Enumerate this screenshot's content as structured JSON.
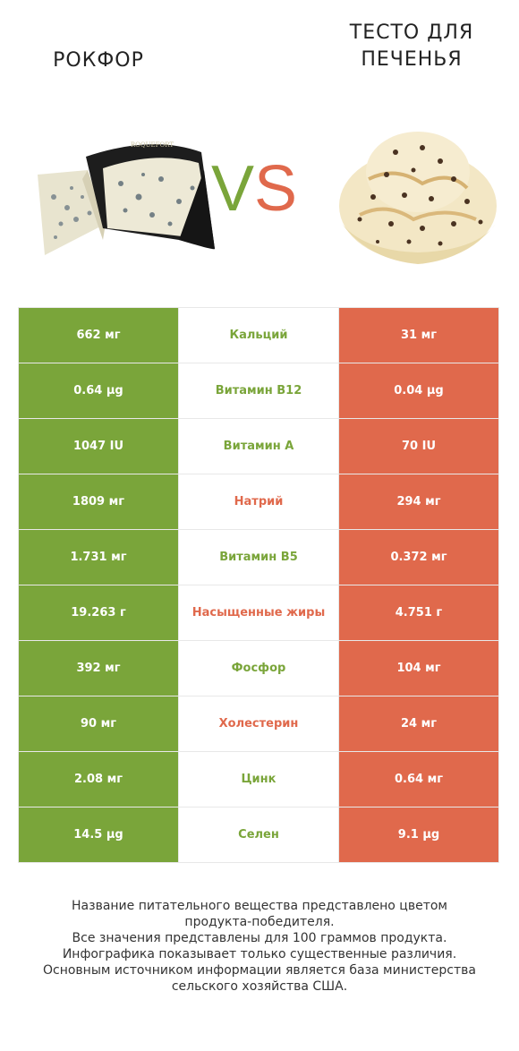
{
  "header": {
    "left_title": "РОКФОР",
    "right_title_line1": "ТЕСТО ДЛЯ",
    "right_title_line2": "ПЕЧЕНЬЯ",
    "vs_v": "V",
    "vs_s": "S"
  },
  "images": {
    "left": "roquefort-cheese-image",
    "right": "cookie-dough-ice-cream-image",
    "left_label": "ROQUEFORT"
  },
  "colors": {
    "left": "#7aa53a",
    "right": "#e0694c"
  },
  "rows": [
    {
      "left": "662 мг",
      "name": "Кальций",
      "right": "31 мг",
      "winner": "left"
    },
    {
      "left": "0.64 µg",
      "name": "Витамин B12",
      "right": "0.04 µg",
      "winner": "left"
    },
    {
      "left": "1047 IU",
      "name": "Витамин A",
      "right": "70 IU",
      "winner": "left"
    },
    {
      "left": "1809 мг",
      "name": "Натрий",
      "right": "294 мг",
      "winner": "right"
    },
    {
      "left": "1.731 мг",
      "name": "Витамин B5",
      "right": "0.372 мг",
      "winner": "left"
    },
    {
      "left": "19.263 г",
      "name": "Насыщенные жиры",
      "right": "4.751 г",
      "winner": "right"
    },
    {
      "left": "392 мг",
      "name": "Фосфор",
      "right": "104 мг",
      "winner": "left"
    },
    {
      "left": "90 мг",
      "name": "Холестерин",
      "right": "24 мг",
      "winner": "right"
    },
    {
      "left": "2.08 мг",
      "name": "Цинк",
      "right": "0.64 мг",
      "winner": "left"
    },
    {
      "left": "14.5 µg",
      "name": "Селен",
      "right": "9.1 µg",
      "winner": "left"
    }
  ],
  "footer": {
    "line1": "Название питательного вещества представлено цветом",
    "line2": "продукта-победителя.",
    "line3": "Все значения представлены для 100 граммов продукта.",
    "line4": "Инфографика показывает только существенные различия.",
    "line5": "Основным источником информации является база министерства",
    "line6": "сельского хозяйства США."
  }
}
